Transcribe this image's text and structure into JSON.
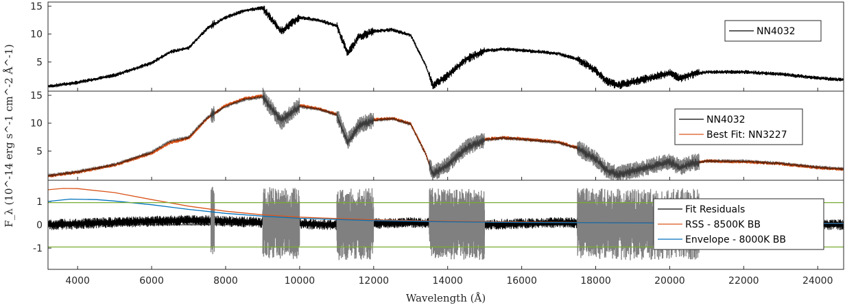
{
  "chart_data": {
    "type": "line",
    "xlabel": "Wavelength (Å)",
    "ylabel": "F_λ (10^-14 erg s^-1 cm^-2 Å^-1)",
    "x_ticks": [
      4000,
      6000,
      8000,
      10000,
      12000,
      14000,
      16000,
      18000,
      20000,
      22000,
      24000
    ],
    "xlim": [
      3200,
      24700
    ],
    "colors": {
      "observed": "#000000",
      "fit": "#D95319",
      "masked": "#808080",
      "rss": "#D95319",
      "envelope": "#0072BD",
      "threshold": "#77AC30",
      "zero": "#000000"
    },
    "panels": [
      {
        "ylim": [
          0,
          15.5
        ],
        "y_ticks": [
          5,
          10,
          15
        ],
        "legend_position": "top-right",
        "series": [
          {
            "name": "NN4032",
            "x": [
              3200,
              4000,
              5000,
              6000,
              6500,
              7000,
              7500,
              8000,
              8500,
              9000,
              9500,
              10000,
              10500,
              11000,
              11300,
              11600,
              12000,
              12500,
              13000,
              13400,
              13600,
              14000,
              14500,
              15000,
              15500,
              16000,
              17000,
              17500,
              18000,
              18300,
              18600,
              19000,
              19500,
              20000,
              20300,
              20600,
              21000,
              22000,
              23000,
              24000,
              24700
            ],
            "values": [
              0.6,
              1.3,
              2.6,
              4.8,
              6.8,
              7.5,
              11.0,
              13.0,
              14.2,
              14.7,
              10.5,
              13.0,
              12.5,
              11.5,
              6.5,
              9.5,
              10.5,
              10.8,
              9.8,
              4.5,
              0.8,
              2.5,
              5.5,
              7.0,
              7.3,
              7.1,
              6.5,
              5.5,
              3.5,
              1.5,
              0.8,
              1.4,
              2.2,
              3.0,
              2.0,
              2.8,
              3.2,
              3.2,
              2.8,
              2.1,
              1.8
            ]
          }
        ]
      },
      {
        "ylim": [
          0,
          15.5
        ],
        "y_ticks": [
          5,
          10,
          15
        ],
        "legend_position": "top-right",
        "series": [
          {
            "name": "NN4032",
            "x": [
              3200,
              4000,
              5000,
              6000,
              6500,
              7000,
              7500,
              8000,
              8500,
              9000,
              9500,
              10000,
              10500,
              11000,
              11300,
              11600,
              12000,
              12500,
              13000,
              13400,
              13600,
              14000,
              14500,
              15000,
              15500,
              16000,
              17000,
              17500,
              18000,
              18300,
              18600,
              19000,
              19500,
              20000,
              20300,
              20600,
              21000,
              22000,
              23000,
              24000,
              24700
            ],
            "values": [
              0.6,
              1.3,
              2.6,
              4.8,
              6.8,
              7.5,
              11.0,
              13.0,
              14.2,
              14.7,
              10.5,
              13.0,
              12.5,
              11.5,
              6.5,
              9.5,
              10.5,
              10.8,
              9.8,
              4.5,
              0.8,
              2.5,
              5.5,
              7.0,
              7.3,
              7.1,
              6.5,
              5.5,
              3.5,
              1.5,
              0.8,
              1.4,
              2.2,
              3.0,
              2.0,
              2.8,
              3.2,
              3.2,
              2.8,
              2.1,
              1.8
            ]
          },
          {
            "name": "Best Fit: NN3227",
            "x": [
              3200,
              4000,
              5000,
              6000,
              6500,
              7000,
              7500,
              8000,
              8500,
              9000,
              9500,
              10000,
              10500,
              11000,
              11300,
              11600,
              12000,
              12500,
              13000,
              13400,
              13600,
              14000,
              14500,
              15000,
              15500,
              16000,
              17000,
              17500,
              18000,
              18300,
              18600,
              19000,
              19500,
              20000,
              20300,
              20600,
              21000,
              22000,
              23000,
              24000,
              24700
            ],
            "values": [
              0.5,
              1.2,
              2.5,
              4.6,
              6.5,
              7.3,
              10.8,
              13.2,
              14.4,
              14.9,
              10.2,
              13.2,
              12.6,
              11.6,
              6.8,
              9.6,
              10.6,
              10.9,
              9.9,
              4.6,
              0.9,
              2.6,
              5.6,
              7.1,
              7.4,
              7.2,
              6.6,
              5.6,
              3.6,
              1.6,
              0.9,
              1.5,
              2.3,
              3.1,
              2.1,
              2.9,
              3.2,
              3.1,
              2.7,
              2.0,
              1.7
            ]
          }
        ]
      },
      {
        "ylim": [
          -1.85,
          1.85
        ],
        "y_ticks": [
          -1,
          0,
          1
        ],
        "legend_position": "right",
        "series": [
          {
            "name": "Fit Residuals",
            "x": [
              3200,
              5000,
              7000,
              9000,
              11000,
              13000,
              15000,
              17000,
              19000,
              21000,
              23000,
              24700
            ],
            "values": [
              0,
              0.1,
              0.2,
              0.1,
              0,
              0.1,
              0,
              0.1,
              0,
              0.05,
              0.05,
              0
            ]
          },
          {
            "name": "RSS - 8500K BB",
            "x": [
              3200,
              3600,
              4000,
              5000,
              6000,
              7000,
              8000,
              9000,
              10000,
              12000,
              14000,
              16000,
              18000,
              20000,
              22000,
              24000,
              24700
            ],
            "values": [
              1.5,
              1.56,
              1.55,
              1.38,
              1.08,
              0.8,
              0.58,
              0.43,
              0.33,
              0.21,
              0.15,
              0.12,
              0.1,
              0.09,
              0.08,
              0.07,
              0.07
            ]
          },
          {
            "name": "Envelope - 8000K BB",
            "x": [
              3200,
              3800,
              4500,
              5000,
              6000,
              7000,
              8000,
              9000,
              10000,
              12000,
              14000,
              16000,
              18000,
              20000,
              22000,
              24000,
              24700
            ],
            "values": [
              1.0,
              1.1,
              1.08,
              1.02,
              0.86,
              0.66,
              0.49,
              0.37,
              0.28,
              0.18,
              0.13,
              0.1,
              0.09,
              0.08,
              0.07,
              0.06,
              0.06
            ]
          },
          {
            "name": "",
            "x": [
              3200,
              24700
            ],
            "values": [
              0.95,
              0.95
            ]
          },
          {
            "name": "",
            "x": [
              3200,
              24700
            ],
            "values": [
              -0.95,
              -0.95
            ]
          }
        ]
      }
    ]
  }
}
